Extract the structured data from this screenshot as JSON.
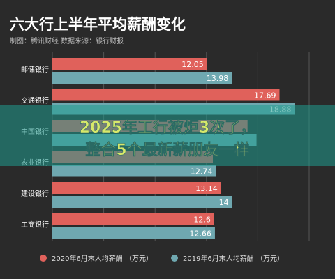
{
  "title": "六大行上半年平均薪酬变化",
  "subtitle": "制图：腾讯财经  数据来源：银行财报",
  "overlay": {
    "line1": "2025年工行被炬3次了，",
    "line2": "整合5个最新薪朋友一样"
  },
  "colors": {
    "background": "#2a2a2a",
    "series2020": "#e0615b",
    "series2019": "#6fa8b0",
    "banner": "#1f9a8e",
    "overlay_text": "#d8e86a",
    "grid": "#555555",
    "text": "#ffffff"
  },
  "chart_data": {
    "type": "bar",
    "orientation": "horizontal",
    "title": "六大行上半年平均薪酬变化",
    "categories": [
      "邮储银行",
      "交通银行",
      "中国银行",
      "农业银行",
      "建设银行",
      "工商银行"
    ],
    "series": [
      {
        "name": "2020年6月末人均薪酬 （万元）",
        "values": [
          12.05,
          17.69,
          15.2,
          12.5,
          13.14,
          12.6
        ]
      },
      {
        "name": "2019年6月末人均薪酬 （万元）",
        "values": [
          13.98,
          18.88,
          15.9,
          12.74,
          14,
          12.66
        ]
      }
    ],
    "value_labels": [
      [
        "12.05",
        "17.69",
        "",
        "",
        "13.14",
        "12.6"
      ],
      [
        "13.98",
        "18.88",
        "",
        "12.74",
        "14",
        "12.66"
      ]
    ],
    "xlim": [
      0,
      20
    ],
    "grid": true,
    "legend_position": "bottom"
  }
}
